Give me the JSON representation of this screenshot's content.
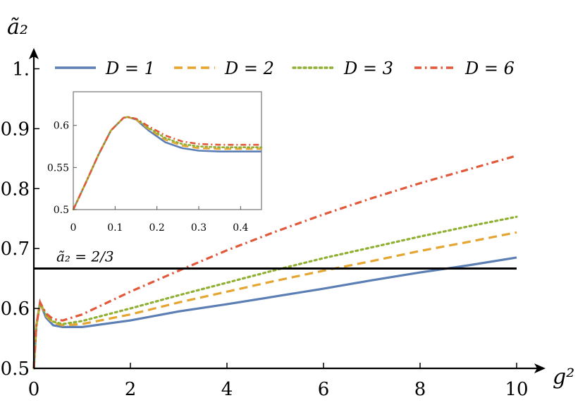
{
  "chart_data": [
    {
      "type": "line",
      "xlabel": "g²",
      "ylabel": "ã₂",
      "xlim": [
        0,
        10
      ],
      "ylim": [
        0.5,
        1.05
      ],
      "xticks": [
        0,
        2,
        4,
        6,
        8,
        10
      ],
      "xtick_labels": [
        "0",
        "2",
        "4",
        "6",
        "8",
        "10"
      ],
      "yticks": [
        0.5,
        0.6,
        0.7,
        0.8,
        0.9,
        1.0
      ],
      "ytick_labels": [
        "0.5",
        "0.6",
        "0.7",
        "0.8",
        "0.9",
        "1."
      ],
      "grid": false,
      "legend_position": "top",
      "series": [
        {
          "name": "D = 1",
          "color": "#5b7fb5",
          "style": "solid",
          "x": [
            0,
            0.05,
            0.13,
            0.25,
            0.4,
            0.6,
            1,
            2,
            3,
            4,
            5,
            6,
            7,
            8,
            9,
            10
          ],
          "y": [
            0.5,
            0.57,
            0.61,
            0.585,
            0.572,
            0.569,
            0.569,
            0.58,
            0.595,
            0.607,
            0.62,
            0.633,
            0.647,
            0.66,
            0.672,
            0.685
          ]
        },
        {
          "name": "D = 2",
          "color": "#e5a531",
          "style": "dashed",
          "x": [
            0,
            0.05,
            0.13,
            0.25,
            0.4,
            0.6,
            1,
            2,
            3,
            4,
            5,
            6,
            7,
            8,
            9,
            10
          ],
          "y": [
            0.5,
            0.57,
            0.61,
            0.588,
            0.576,
            0.572,
            0.574,
            0.59,
            0.61,
            0.628,
            0.646,
            0.663,
            0.679,
            0.696,
            0.711,
            0.727
          ]
        },
        {
          "name": "D = 3",
          "color": "#8fb032",
          "style": "dotted",
          "x": [
            0,
            0.05,
            0.13,
            0.25,
            0.4,
            0.6,
            1,
            2,
            3,
            4,
            5,
            6,
            7,
            8,
            9,
            10
          ],
          "y": [
            0.5,
            0.57,
            0.61,
            0.59,
            0.578,
            0.574,
            0.579,
            0.6,
            0.622,
            0.643,
            0.664,
            0.684,
            0.702,
            0.72,
            0.737,
            0.753
          ]
        },
        {
          "name": "D = 6",
          "color": "#e2583a",
          "style": "dashdot",
          "x": [
            0,
            0.05,
            0.13,
            0.25,
            0.4,
            0.6,
            1,
            2,
            3,
            4,
            5,
            6,
            7,
            8,
            9,
            10
          ],
          "y": [
            0.5,
            0.57,
            0.61,
            0.592,
            0.582,
            0.58,
            0.59,
            0.628,
            0.663,
            0.697,
            0.728,
            0.757,
            0.784,
            0.809,
            0.832,
            0.855
          ]
        }
      ],
      "reference_line": {
        "y": 0.6667,
        "label": "ã₂ = 2/3",
        "color": "#000000"
      }
    },
    {
      "type": "line",
      "role": "inset",
      "xlim": [
        0,
        0.45
      ],
      "ylim": [
        0.5,
        0.64
      ],
      "xticks": [
        0,
        0.1,
        0.2,
        0.3,
        0.4
      ],
      "xtick_labels": [
        "0",
        "0.1",
        "0.2",
        "0.3",
        "0.4"
      ],
      "yticks": [
        0.5,
        0.55,
        0.6
      ],
      "ytick_labels": [
        "0.5",
        "0.55",
        "0.6"
      ],
      "series": [
        {
          "name": "D = 1",
          "color": "#5b7fb5",
          "style": "solid",
          "x": [
            0,
            0.03,
            0.06,
            0.09,
            0.12,
            0.13,
            0.15,
            0.18,
            0.22,
            0.26,
            0.3,
            0.35,
            0.4,
            0.45
          ],
          "y": [
            0.5,
            0.532,
            0.565,
            0.594,
            0.609,
            0.61,
            0.607,
            0.594,
            0.58,
            0.573,
            0.57,
            0.569,
            0.569,
            0.569
          ]
        },
        {
          "name": "D = 2",
          "color": "#e5a531",
          "style": "dashed",
          "x": [
            0,
            0.03,
            0.06,
            0.09,
            0.12,
            0.13,
            0.15,
            0.18,
            0.22,
            0.26,
            0.3,
            0.35,
            0.4,
            0.45
          ],
          "y": [
            0.5,
            0.532,
            0.565,
            0.594,
            0.609,
            0.61,
            0.607,
            0.596,
            0.583,
            0.576,
            0.573,
            0.572,
            0.572,
            0.572
          ]
        },
        {
          "name": "D = 3",
          "color": "#8fb032",
          "style": "dotted",
          "x": [
            0,
            0.03,
            0.06,
            0.09,
            0.12,
            0.13,
            0.15,
            0.18,
            0.22,
            0.26,
            0.3,
            0.35,
            0.4,
            0.45
          ],
          "y": [
            0.5,
            0.532,
            0.565,
            0.594,
            0.609,
            0.61,
            0.608,
            0.597,
            0.585,
            0.578,
            0.575,
            0.574,
            0.574,
            0.574
          ]
        },
        {
          "name": "D = 6",
          "color": "#e2583a",
          "style": "dashdot",
          "x": [
            0,
            0.03,
            0.06,
            0.09,
            0.12,
            0.13,
            0.15,
            0.18,
            0.22,
            0.26,
            0.3,
            0.35,
            0.4,
            0.45
          ],
          "y": [
            0.5,
            0.532,
            0.565,
            0.594,
            0.609,
            0.61,
            0.608,
            0.599,
            0.588,
            0.581,
            0.578,
            0.577,
            0.577,
            0.577
          ]
        }
      ]
    }
  ]
}
